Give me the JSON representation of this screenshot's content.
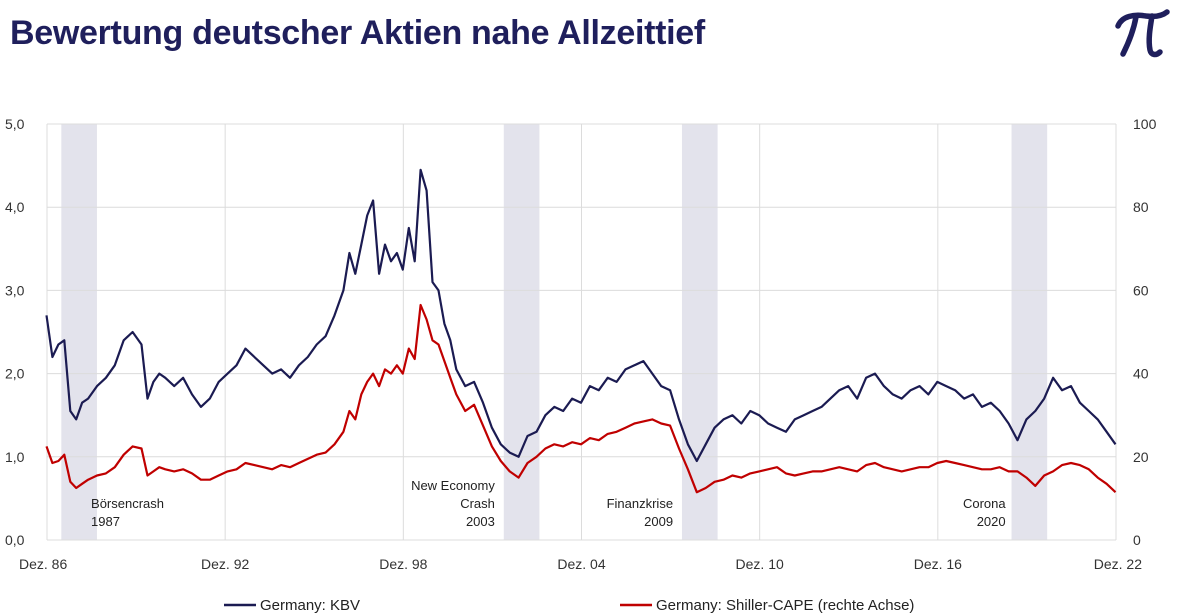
{
  "title": "Bewertung deutscher Aktien nahe Allzeittief",
  "logo_icon": "pi-logo-icon",
  "colors": {
    "title": "#1f1f5c",
    "kbv": "#1b1b52",
    "cape": "#c00000",
    "recession": "#e3e3ec",
    "grid": "#dcdcdc"
  },
  "chart_data": {
    "type": "line",
    "x_range": [
      1986.917,
      2022.917
    ],
    "x_ticks": [
      {
        "label": "Dez. 86",
        "x": 1986.917
      },
      {
        "label": "Dez. 92",
        "x": 1992.917
      },
      {
        "label": "Dez. 98",
        "x": 1998.917
      },
      {
        "label": "Dez. 04",
        "x": 2004.917
      },
      {
        "label": "Dez. 10",
        "x": 2010.917
      },
      {
        "label": "Dez. 16",
        "x": 2016.917
      },
      {
        "label": "Dez. 22",
        "x": 2022.917
      }
    ],
    "y_left": {
      "range": [
        0,
        5
      ],
      "ticks": [
        "0,0",
        "1,0",
        "2,0",
        "3,0",
        "4,0",
        "5,0"
      ]
    },
    "y_right": {
      "range": [
        0,
        100
      ],
      "ticks": [
        "0",
        "20",
        "40",
        "60",
        "80",
        "100"
      ]
    },
    "grid": true,
    "legend_position": "bottom",
    "crisis_periods": [
      {
        "start": 1987.4,
        "end": 1988.6,
        "label": [
          "Börsencrash",
          "1987"
        ],
        "label_x": 1988.4,
        "label_align": "left"
      },
      {
        "start": 2002.3,
        "end": 2003.5,
        "label": [
          "New Economy",
          "Crash",
          "2003"
        ],
        "label_x": 2002.0,
        "label_align": "right"
      },
      {
        "start": 2008.3,
        "end": 2009.5,
        "label": [
          "Finanzkrise",
          "2009"
        ],
        "label_x": 2008.0,
        "label_align": "right"
      },
      {
        "start": 2019.4,
        "end": 2020.6,
        "label": [
          "Corona",
          "2020"
        ],
        "label_x": 2019.2,
        "label_align": "right"
      }
    ],
    "series": [
      {
        "name": "Germany: KBV",
        "axis": "left",
        "x": [
          1986.9,
          1987.1,
          1987.3,
          1987.5,
          1987.7,
          1987.9,
          1988.1,
          1988.3,
          1988.6,
          1988.9,
          1989.2,
          1989.5,
          1989.8,
          1990.1,
          1990.3,
          1990.5,
          1990.7,
          1990.9,
          1991.2,
          1991.5,
          1991.8,
          1992.1,
          1992.4,
          1992.7,
          1993.0,
          1993.3,
          1993.6,
          1993.9,
          1994.2,
          1994.5,
          1994.8,
          1995.1,
          1995.4,
          1995.7,
          1996.0,
          1996.3,
          1996.6,
          1996.9,
          1997.1,
          1997.3,
          1997.5,
          1997.7,
          1997.9,
          1998.1,
          1998.3,
          1998.5,
          1998.7,
          1998.9,
          1999.1,
          1999.3,
          1999.5,
          1999.7,
          1999.9,
          2000.1,
          2000.3,
          2000.5,
          2000.7,
          2001.0,
          2001.3,
          2001.6,
          2001.9,
          2002.2,
          2002.5,
          2002.8,
          2003.1,
          2003.4,
          2003.7,
          2004.0,
          2004.3,
          2004.6,
          2004.9,
          2005.2,
          2005.5,
          2005.8,
          2006.1,
          2006.4,
          2006.7,
          2007.0,
          2007.3,
          2007.6,
          2007.9,
          2008.2,
          2008.5,
          2008.8,
          2009.1,
          2009.4,
          2009.7,
          2010.0,
          2010.3,
          2010.6,
          2010.9,
          2011.2,
          2011.5,
          2011.8,
          2012.1,
          2012.4,
          2012.7,
          2013.0,
          2013.3,
          2013.6,
          2013.9,
          2014.2,
          2014.5,
          2014.8,
          2015.1,
          2015.4,
          2015.7,
          2016.0,
          2016.3,
          2016.6,
          2016.9,
          2017.2,
          2017.5,
          2017.8,
          2018.1,
          2018.4,
          2018.7,
          2019.0,
          2019.3,
          2019.6,
          2019.9,
          2020.2,
          2020.5,
          2020.8,
          2021.1,
          2021.4,
          2021.7,
          2022.0,
          2022.3,
          2022.6,
          2022.9
        ],
        "values": [
          2.7,
          2.2,
          2.35,
          2.4,
          1.55,
          1.45,
          1.65,
          1.7,
          1.85,
          1.95,
          2.1,
          2.4,
          2.5,
          2.35,
          1.7,
          1.9,
          2.0,
          1.95,
          1.85,
          1.95,
          1.75,
          1.6,
          1.7,
          1.9,
          2.0,
          2.1,
          2.3,
          2.2,
          2.1,
          2.0,
          2.05,
          1.95,
          2.1,
          2.2,
          2.35,
          2.45,
          2.7,
          3.0,
          3.45,
          3.2,
          3.55,
          3.9,
          4.08,
          3.2,
          3.55,
          3.35,
          3.45,
          3.25,
          3.75,
          3.35,
          4.45,
          4.2,
          3.1,
          3.0,
          2.6,
          2.4,
          2.05,
          1.85,
          1.9,
          1.65,
          1.35,
          1.15,
          1.05,
          1.0,
          1.25,
          1.3,
          1.5,
          1.6,
          1.55,
          1.7,
          1.65,
          1.85,
          1.8,
          1.95,
          1.9,
          2.05,
          2.1,
          2.15,
          2.0,
          1.85,
          1.8,
          1.45,
          1.15,
          0.95,
          1.15,
          1.35,
          1.45,
          1.5,
          1.4,
          1.55,
          1.5,
          1.4,
          1.35,
          1.3,
          1.45,
          1.5,
          1.55,
          1.6,
          1.7,
          1.8,
          1.85,
          1.7,
          1.95,
          2.0,
          1.85,
          1.75,
          1.7,
          1.8,
          1.85,
          1.75,
          1.9,
          1.85,
          1.8,
          1.7,
          1.75,
          1.6,
          1.65,
          1.55,
          1.4,
          1.2,
          1.45,
          1.55,
          1.7,
          1.95,
          1.8,
          1.85,
          1.65,
          1.55,
          1.45,
          1.3,
          1.15
        ]
      },
      {
        "name": "Germany: Shiller-CAPE (rechte Achse)",
        "axis": "right",
        "x": [
          1986.9,
          1987.1,
          1987.3,
          1987.5,
          1987.7,
          1987.9,
          1988.1,
          1988.3,
          1988.6,
          1988.9,
          1989.2,
          1989.5,
          1989.8,
          1990.1,
          1990.3,
          1990.5,
          1990.7,
          1990.9,
          1991.2,
          1991.5,
          1991.8,
          1992.1,
          1992.4,
          1992.7,
          1993.0,
          1993.3,
          1993.6,
          1993.9,
          1994.2,
          1994.5,
          1994.8,
          1995.1,
          1995.4,
          1995.7,
          1996.0,
          1996.3,
          1996.6,
          1996.9,
          1997.1,
          1997.3,
          1997.5,
          1997.7,
          1997.9,
          1998.1,
          1998.3,
          1998.5,
          1998.7,
          1998.9,
          1999.1,
          1999.3,
          1999.5,
          1999.7,
          1999.9,
          2000.1,
          2000.3,
          2000.5,
          2000.7,
          2001.0,
          2001.3,
          2001.6,
          2001.9,
          2002.2,
          2002.5,
          2002.8,
          2003.1,
          2003.4,
          2003.7,
          2004.0,
          2004.3,
          2004.6,
          2004.9,
          2005.2,
          2005.5,
          2005.8,
          2006.1,
          2006.4,
          2006.7,
          2007.0,
          2007.3,
          2007.6,
          2007.9,
          2008.2,
          2008.5,
          2008.8,
          2009.1,
          2009.4,
          2009.7,
          2010.0,
          2010.3,
          2010.6,
          2010.9,
          2011.2,
          2011.5,
          2011.8,
          2012.1,
          2012.4,
          2012.7,
          2013.0,
          2013.3,
          2013.6,
          2013.9,
          2014.2,
          2014.5,
          2014.8,
          2015.1,
          2015.4,
          2015.7,
          2016.0,
          2016.3,
          2016.6,
          2016.9,
          2017.2,
          2017.5,
          2017.8,
          2018.1,
          2018.4,
          2018.7,
          2019.0,
          2019.3,
          2019.6,
          2019.9,
          2020.2,
          2020.5,
          2020.8,
          2021.1,
          2021.4,
          2021.7,
          2022.0,
          2022.3,
          2022.6,
          2022.9
        ],
        "values": [
          22.5,
          18.5,
          19.0,
          20.5,
          14.0,
          12.5,
          13.5,
          14.5,
          15.5,
          16.0,
          17.5,
          20.5,
          22.5,
          22.0,
          15.5,
          16.5,
          17.5,
          17.0,
          16.5,
          17.0,
          16.0,
          14.5,
          14.5,
          15.5,
          16.5,
          17.0,
          18.5,
          18.0,
          17.5,
          17.0,
          18.0,
          17.5,
          18.5,
          19.5,
          20.5,
          21.0,
          23.0,
          26.0,
          31.0,
          29.0,
          35.0,
          38.0,
          40.0,
          37.0,
          41.0,
          40.0,
          42.0,
          40.0,
          46.0,
          43.5,
          56.5,
          53.0,
          48.0,
          47.0,
          43.0,
          39.0,
          35.0,
          31.0,
          32.5,
          27.5,
          22.5,
          19.0,
          16.5,
          15.0,
          18.5,
          20.0,
          22.0,
          23.0,
          22.5,
          23.5,
          23.0,
          24.5,
          24.0,
          25.5,
          26.0,
          27.0,
          28.0,
          28.5,
          29.0,
          28.0,
          27.5,
          22.0,
          17.0,
          11.5,
          12.5,
          14.0,
          14.5,
          15.5,
          15.0,
          16.0,
          16.5,
          17.0,
          17.5,
          16.0,
          15.5,
          16.0,
          16.5,
          16.5,
          17.0,
          17.5,
          17.0,
          16.5,
          18.0,
          18.5,
          17.5,
          17.0,
          16.5,
          17.0,
          17.5,
          17.5,
          18.5,
          19.0,
          18.5,
          18.0,
          17.5,
          17.0,
          17.0,
          17.5,
          16.5,
          16.5,
          15.0,
          13.0,
          15.5,
          16.5,
          18.0,
          18.5,
          18.0,
          17.0,
          15.0,
          13.5,
          11.5
        ]
      }
    ]
  }
}
